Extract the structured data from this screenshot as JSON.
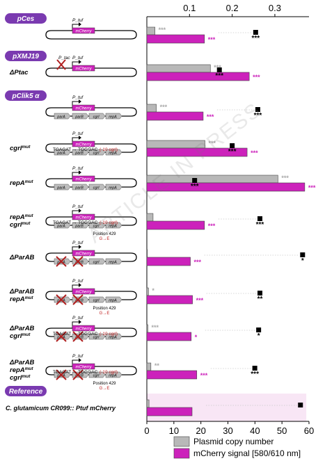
{
  "chart_data": {
    "type": "bar",
    "orientation": "horizontal",
    "top_axis": {
      "ticks": [
        "0.1",
        "0.2",
        "0.3"
      ],
      "min": 0.0,
      "max": 0.38
    },
    "bottom_axis": {
      "ticks": [
        "0",
        "10",
        "20",
        "30",
        "40",
        "50",
        "60"
      ],
      "min": 0,
      "max": 60
    },
    "section_tags": [
      {
        "text": "pCes",
        "row": 0
      },
      {
        "text": "pXMJ19",
        "row": 1
      },
      {
        "text": "pClik5 α",
        "row": 2
      },
      {
        "text": "Reference",
        "row": 10
      }
    ],
    "row_labels": [
      "",
      "ΔPtac",
      "",
      "cgrl^mut",
      "repA^mut",
      "repA^mut cgrl^mut",
      "ΔParAB",
      "ΔParAB repA^mut",
      "ΔParAB cgrl^mut",
      "ΔParAB repA^mut cgrl^mut",
      "C. glutamicum CR099:: P_tuf mCherry"
    ],
    "plasmid_elements": {
      "promoter": "P_tuf",
      "promoter_ptac": "P_tac",
      "reporter": "mCherry",
      "genes": [
        "parA",
        "parB",
        "cgrl",
        "repA"
      ],
      "mutation_text": "TGAGAT → TGGGAC",
      "mutation_note": "(-10 cgrl)",
      "position_label": "Position 429",
      "aa_change": "G→E"
    },
    "series": [
      {
        "name": "Plasmid copy number",
        "color": "#b8b8b8",
        "values": [
          3.0,
          23.5,
          3.5,
          21.5,
          48.5,
          2.3,
          0.2,
          0.6,
          0.4,
          1.5,
          0.8
        ]
      },
      {
        "name": "mCherry signal [580/610 nm]",
        "color": "#cc22bb",
        "values": [
          0.135,
          0.24,
          0.132,
          0.235,
          0.37,
          0.135,
          0.102,
          0.107,
          0.104,
          0.117,
          0.106
        ]
      }
    ],
    "square_markers": [
      0.255,
      0.17,
      0.26,
      0.2,
      0.112,
      0.265,
      0.365,
      0.265,
      0.262,
      0.253,
      0.36
    ],
    "significance": [
      {
        "copy": "***",
        "signal": "***",
        "marker": "***"
      },
      {
        "copy": "***",
        "signal": "***",
        "marker": "***"
      },
      {
        "copy": "***",
        "signal": "***",
        "marker": "***"
      },
      {
        "copy": "***",
        "signal": "***",
        "marker": "***"
      },
      {
        "copy": "***",
        "signal": "***",
        "marker": "***"
      },
      {
        "copy": "",
        "signal": "***",
        "marker": "***"
      },
      {
        "copy": "",
        "signal": "***",
        "marker": "*"
      },
      {
        "copy": "*",
        "signal": "***",
        "marker": "**"
      },
      {
        "copy": "***",
        "signal": "*",
        "marker": "*"
      },
      {
        "copy": "**",
        "signal": "***",
        "marker": "***"
      },
      {
        "copy": "",
        "signal": "",
        "marker": ""
      }
    ],
    "legend": [
      "Plasmid copy number",
      "mCherry signal [580/610 nm]"
    ],
    "legend_position": "bottom",
    "watermark": "ARTICLE IN PRESS"
  }
}
